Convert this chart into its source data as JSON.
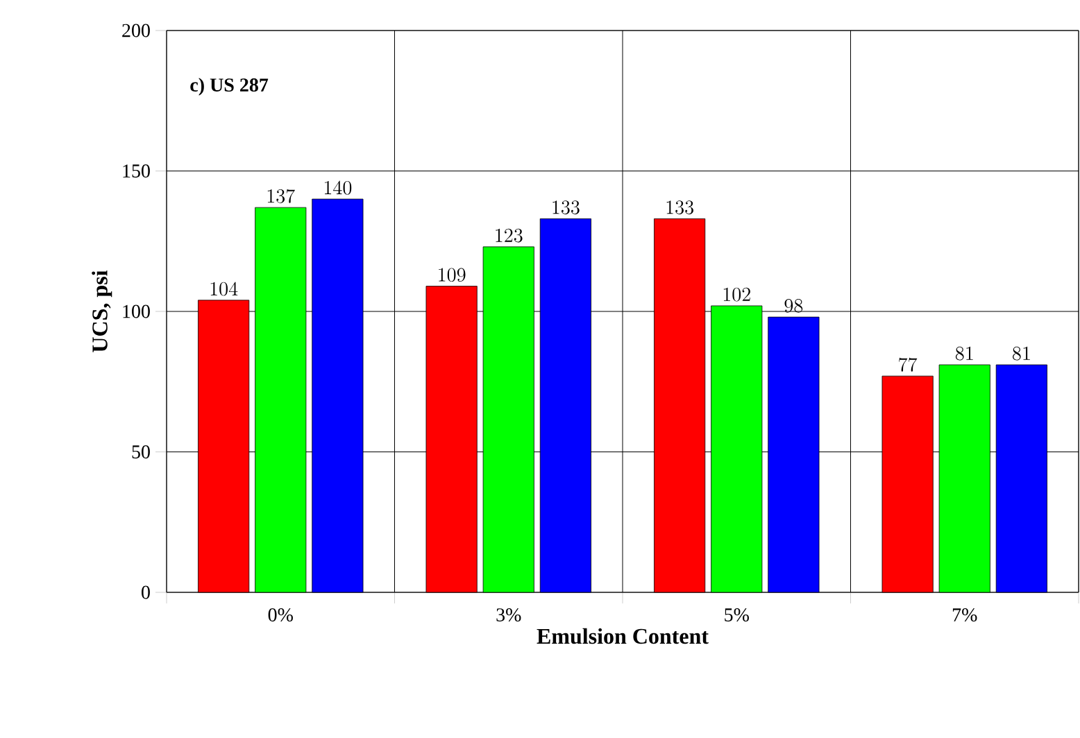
{
  "chart_data": {
    "type": "bar",
    "title": "c) US 287",
    "xlabel": "Emulsion Content",
    "ylabel": "UCS, psi",
    "categories": [
      "0%",
      "3%",
      "5%",
      "7%"
    ],
    "series": [
      {
        "color": "#ff0000",
        "values": [
          104,
          109,
          133,
          77
        ]
      },
      {
        "color": "#00ff00",
        "values": [
          137,
          123,
          102,
          81
        ]
      },
      {
        "color": "#0000ff",
        "values": [
          140,
          133,
          98,
          81
        ]
      }
    ],
    "ylim": [
      0,
      200
    ],
    "yticks": [
      0,
      50,
      100,
      150,
      200
    ],
    "grid": true,
    "data_labels": true
  }
}
